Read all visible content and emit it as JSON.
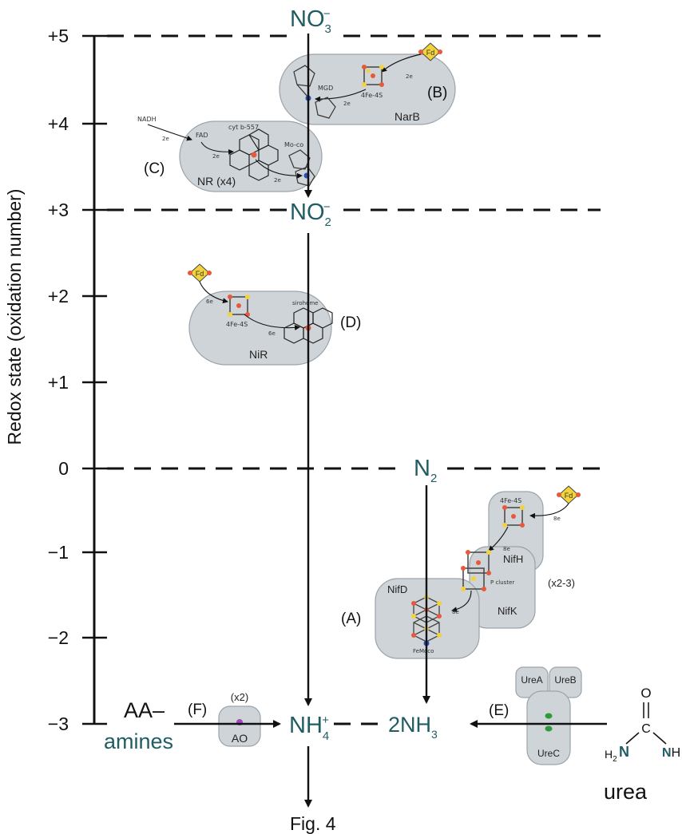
{
  "axis": {
    "title": "Redox state (oxidation number)",
    "ticks": [
      "+5",
      "+4",
      "+3",
      "+2",
      "+1",
      "0",
      "−1",
      "−2",
      "−3"
    ]
  },
  "species": {
    "no3": "NO",
    "no3_sub": "3",
    "no3_sup": "−",
    "no2": "NO",
    "no2_sub": "2",
    "no2_sup": "−",
    "n2": "N",
    "n2_sub": "2",
    "nh4": "NH",
    "nh4_sub": "4",
    "nh4_sup": "+",
    "nh3": "2NH",
    "nh3_sub": "3",
    "aa": "AA–",
    "amines": "amines",
    "urea": "urea",
    "urea_o": "O",
    "urea_c": "C",
    "urea_h2n": "H",
    "urea_h2n_sub": "2",
    "urea_n1": "N",
    "urea_nh": "NH"
  },
  "enzymes": {
    "narb": {
      "name": "NarB",
      "tag": "(B)",
      "fd": "Fd",
      "cluster": "4Fe-4S",
      "cofactor": "MGD",
      "e": [
        "2e",
        "2e"
      ]
    },
    "nr": {
      "name": "NR (x4)",
      "tag": "(C)",
      "nadh": "NADH",
      "fad": "FAD",
      "cyt": "cyt b-557",
      "moco": "Mo-co",
      "e": [
        "2e",
        "2e",
        "2e"
      ]
    },
    "nir": {
      "name": "NiR",
      "tag": "(D)",
      "fd": "Fd",
      "cluster": "4Fe-4S",
      "siroheme": "siroheme",
      "e": [
        "6e",
        "6e"
      ]
    },
    "nif": {
      "tag": "(A)",
      "nifh": "NifH",
      "nifk": "NifK",
      "nifd": "NifD",
      "fd": "Fd",
      "cluster": "4Fe-4S",
      "pcluster": "P cluster",
      "femoco": "FeMoco",
      "mult": "(x2-3)",
      "e": [
        "8e",
        "8e",
        "8e"
      ]
    },
    "ao": {
      "name": "AO",
      "tag": "(F)",
      "mult": "(x2)"
    },
    "ure": {
      "a": "UreA",
      "b": "UreB",
      "c": "UreC",
      "tag": "(E)"
    }
  },
  "caption": "Fig. 4",
  "colors": {
    "teal": "#1f5d63",
    "protein": "#cfd4d8",
    "iron": "#e8593a",
    "sulfur": "#f2d33b",
    "blue": "#2a4fb5",
    "green": "#2e9a3a",
    "purple": "#a346c2"
  }
}
